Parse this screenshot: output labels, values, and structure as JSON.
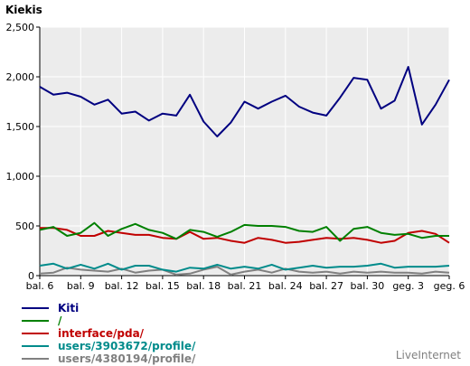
{
  "chart_data": {
    "type": "line",
    "ylabel": "Kiekis",
    "ylim": [
      0,
      2500
    ],
    "yticks": [
      0,
      500,
      1000,
      1500,
      2000,
      2500
    ],
    "ytick_labels": [
      "0",
      "500",
      "1,000",
      "1,500",
      "2,000",
      "2,500"
    ],
    "x_tick_labels": [
      "bal. 6",
      "bal. 9",
      "bal. 12",
      "bal. 15",
      "bal. 18",
      "bal. 21",
      "bal. 24",
      "bal. 27",
      "bal. 30",
      "geg. 3",
      "geg. 6"
    ],
    "x_tick_every": 3,
    "grid": true,
    "legend_placement": "bottom-left",
    "series": [
      {
        "name": "Kiti",
        "color": "#000080",
        "values": [
          1900,
          1820,
          1840,
          1800,
          1720,
          1770,
          1630,
          1650,
          1560,
          1630,
          1610,
          1820,
          1550,
          1400,
          1540,
          1750,
          1680,
          1750,
          1810,
          1700,
          1640,
          1610,
          1790,
          1990,
          1970,
          1680,
          1760,
          2100,
          1520,
          1720,
          1970
        ]
      },
      {
        "name": "/",
        "color": "#008000",
        "values": [
          460,
          490,
          400,
          430,
          530,
          400,
          470,
          520,
          460,
          430,
          370,
          460,
          440,
          390,
          440,
          510,
          500,
          500,
          490,
          450,
          440,
          490,
          350,
          470,
          490,
          430,
          410,
          420,
          380,
          400,
          400
        ]
      },
      {
        "name": "interface/pda/",
        "color": "#c00000",
        "values": [
          480,
          480,
          460,
          400,
          400,
          450,
          430,
          410,
          410,
          380,
          370,
          440,
          370,
          380,
          350,
          330,
          380,
          360,
          330,
          340,
          360,
          380,
          370,
          380,
          360,
          330,
          350,
          430,
          450,
          420,
          330
        ]
      },
      {
        "name": "users/3903672/profile/",
        "color": "#008b8b",
        "values": [
          100,
          120,
          70,
          110,
          70,
          120,
          60,
          100,
          100,
          60,
          40,
          80,
          70,
          110,
          70,
          90,
          70,
          110,
          60,
          80,
          100,
          80,
          90,
          90,
          100,
          120,
          80,
          90,
          90,
          90,
          100
        ]
      },
      {
        "name": "users/4380194/profile/",
        "color": "#808080",
        "values": [
          20,
          30,
          80,
          60,
          50,
          40,
          70,
          30,
          50,
          60,
          10,
          20,
          60,
          90,
          10,
          40,
          60,
          30,
          70,
          40,
          30,
          40,
          20,
          40,
          30,
          40,
          30,
          30,
          20,
          40,
          30
        ]
      }
    ]
  },
  "footer": {
    "brand": "LiveInternet"
  }
}
